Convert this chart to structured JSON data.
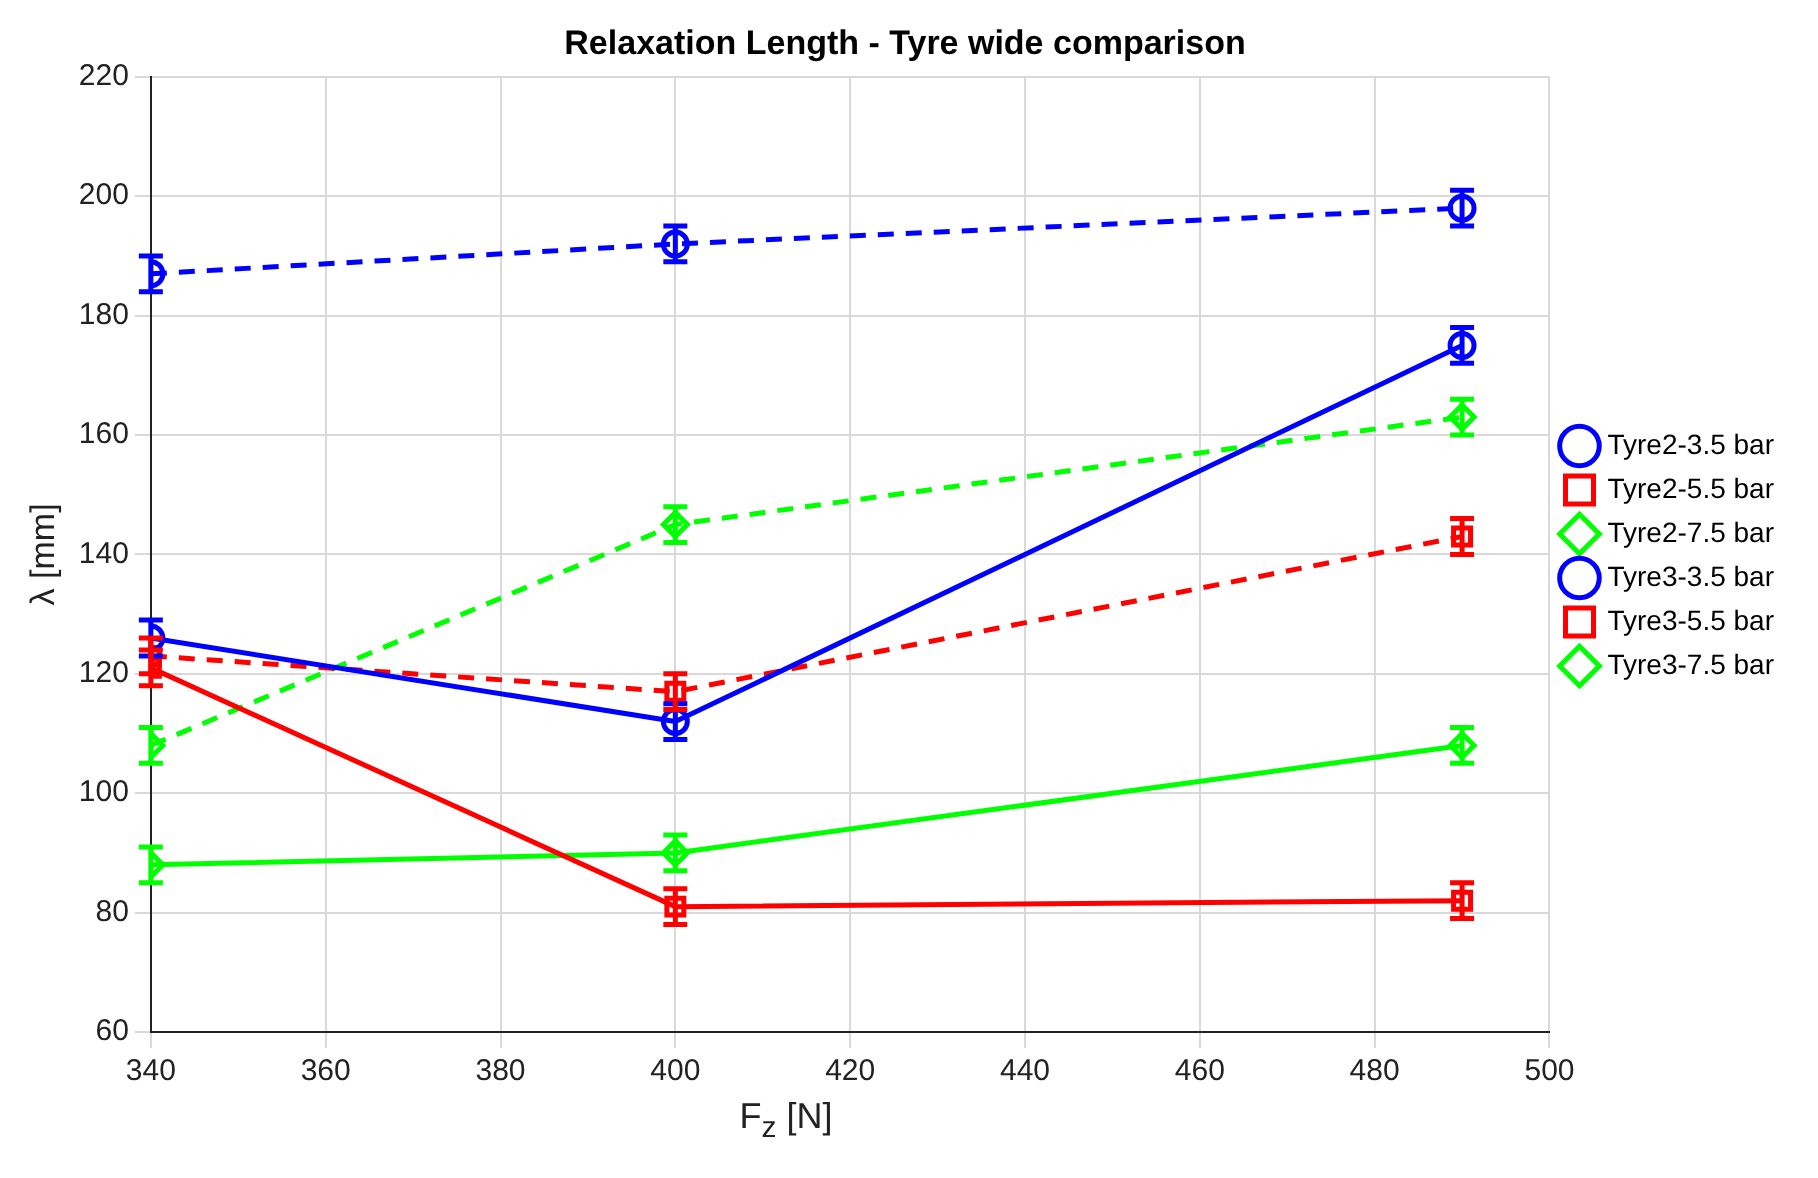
{
  "chart_data": {
    "type": "line",
    "title": "Relaxation Length - Tyre wide comparison",
    "xlabel": "F$_{z}$ [N]",
    "ylabel": "λ [mm]",
    "x": [
      340,
      400,
      490
    ],
    "xlim": [
      340,
      500
    ],
    "xticks": [
      340,
      360,
      380,
      400,
      420,
      440,
      460,
      480,
      500
    ],
    "ylim": [
      60,
      220
    ],
    "yticks": [
      60,
      80,
      100,
      120,
      140,
      160,
      180,
      200,
      220
    ],
    "grid": true,
    "legend": "right",
    "series": [
      {
        "name": "Tyre2-3.5 bar",
        "color": "#0000ff",
        "marker": "circle",
        "line_style": "solid",
        "values": [
          126,
          112,
          175
        ],
        "errors": [
          3,
          3,
          3
        ]
      },
      {
        "name": "Tyre2-5.5 bar",
        "color": "#ff0000",
        "marker": "square",
        "line_style": "solid",
        "values": [
          121,
          81,
          82
        ],
        "errors": [
          3,
          3,
          3
        ]
      },
      {
        "name": "Tyre2-7.5 bar",
        "color": "#00ff00",
        "marker": "diamond",
        "line_style": "solid",
        "values": [
          88,
          90,
          108
        ],
        "errors": [
          3,
          3,
          3
        ]
      },
      {
        "name": "Tyre3-3.5 bar",
        "color": "#0000ff",
        "marker": "circle",
        "line_style": "dashed",
        "values": [
          187,
          192,
          198
        ],
        "errors": [
          3,
          3,
          3
        ]
      },
      {
        "name": "Tyre3-5.5 bar",
        "color": "#ff0000",
        "marker": "square",
        "line_style": "dashed",
        "values": [
          123,
          117,
          143
        ],
        "errors": [
          3,
          3,
          3
        ]
      },
      {
        "name": "Tyre3-7.5 bar",
        "color": "#00ff00",
        "marker": "diamond",
        "line_style": "dashed",
        "values": [
          108,
          145,
          163
        ],
        "errors": [
          3,
          3,
          3
        ]
      }
    ]
  }
}
